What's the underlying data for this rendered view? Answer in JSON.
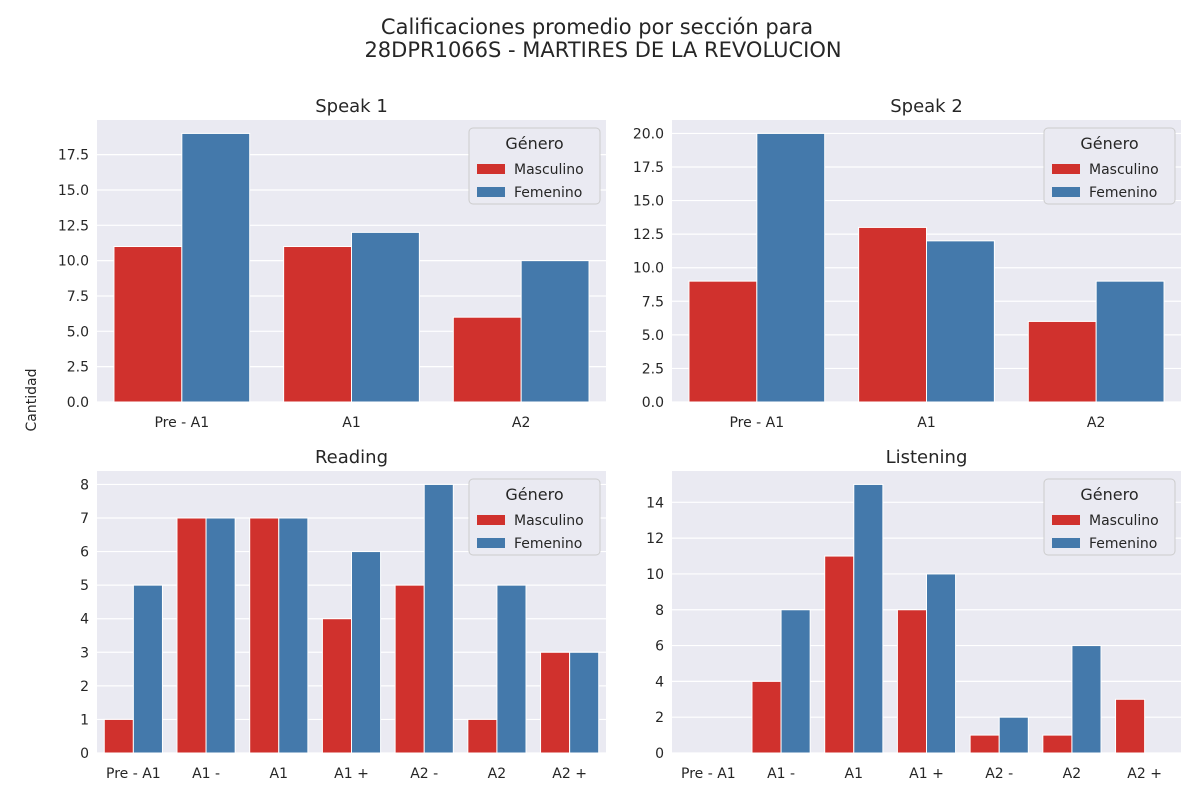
{
  "figure": {
    "title_line1": "Calificaciones promedio por sección para",
    "title_line2": "28DPR1066S - MARTIRES DE LA REVOLUCION",
    "ylabel": "Cantidad"
  },
  "colors": {
    "masculino": "#d0312d",
    "femenino": "#4479ab",
    "plot_background": "#eaeaf2",
    "grid": "#ffffff"
  },
  "legend": {
    "title": "Género",
    "entries": [
      "Masculino",
      "Femenino"
    ],
    "placement": "upper right"
  },
  "chart_data": [
    {
      "type": "bar",
      "title": "Speak 1",
      "categories": [
        "Pre - A1",
        "A1",
        "A2"
      ],
      "series": [
        {
          "name": "Masculino",
          "values": [
            11,
            11,
            6
          ]
        },
        {
          "name": "Femenino",
          "values": [
            19,
            12,
            10
          ]
        }
      ],
      "yticks": [
        0,
        2.5,
        5,
        7.5,
        10,
        12.5,
        15,
        17.5
      ],
      "ytick_labels": [
        "0.0",
        "2.5",
        "5.0",
        "7.5",
        "10.0",
        "12.5",
        "15.0",
        "17.5"
      ],
      "ylim": [
        0,
        19.95
      ],
      "grid": true,
      "legend": "upper right"
    },
    {
      "type": "bar",
      "title": "Speak 2",
      "categories": [
        "Pre - A1",
        "A1",
        "A2"
      ],
      "series": [
        {
          "name": "Masculino",
          "values": [
            9,
            13,
            6
          ]
        },
        {
          "name": "Femenino",
          "values": [
            20,
            12,
            9
          ]
        }
      ],
      "yticks": [
        0,
        2.5,
        5,
        7.5,
        10,
        12.5,
        15,
        17.5,
        20
      ],
      "ytick_labels": [
        "0.0",
        "2.5",
        "5.0",
        "7.5",
        "10.0",
        "12.5",
        "15.0",
        "17.5",
        "20.0"
      ],
      "ylim": [
        0,
        21
      ],
      "grid": true,
      "legend": "upper right"
    },
    {
      "type": "bar",
      "title": "Reading",
      "categories": [
        "Pre - A1",
        "A1 -",
        "A1",
        "A1 +",
        "A2 -",
        "A2",
        "A2 +"
      ],
      "series": [
        {
          "name": "Masculino",
          "values": [
            1,
            7,
            7,
            4,
            5,
            1,
            3
          ]
        },
        {
          "name": "Femenino",
          "values": [
            5,
            7,
            7,
            6,
            8,
            5,
            3
          ]
        }
      ],
      "yticks": [
        0,
        1,
        2,
        3,
        4,
        5,
        6,
        7,
        8
      ],
      "ytick_labels": [
        "0",
        "1",
        "2",
        "3",
        "4",
        "5",
        "6",
        "7",
        "8"
      ],
      "ylim": [
        0,
        8.4
      ],
      "grid": true,
      "legend": "upper right"
    },
    {
      "type": "bar",
      "title": "Listening",
      "categories": [
        "Pre - A1",
        "A1 -",
        "A1",
        "A1 +",
        "A2 -",
        "A2",
        "A2 +"
      ],
      "series": [
        {
          "name": "Masculino",
          "values": [
            0,
            4,
            11,
            8,
            1,
            1,
            3
          ]
        },
        {
          "name": "Femenino",
          "values": [
            0,
            8,
            15,
            10,
            2,
            6,
            0
          ]
        }
      ],
      "yticks": [
        0,
        2,
        4,
        6,
        8,
        10,
        12,
        14
      ],
      "ytick_labels": [
        "0",
        "2",
        "4",
        "6",
        "8",
        "10",
        "12",
        "14"
      ],
      "ylim": [
        0,
        15.75
      ],
      "grid": true,
      "legend": "upper right"
    }
  ]
}
